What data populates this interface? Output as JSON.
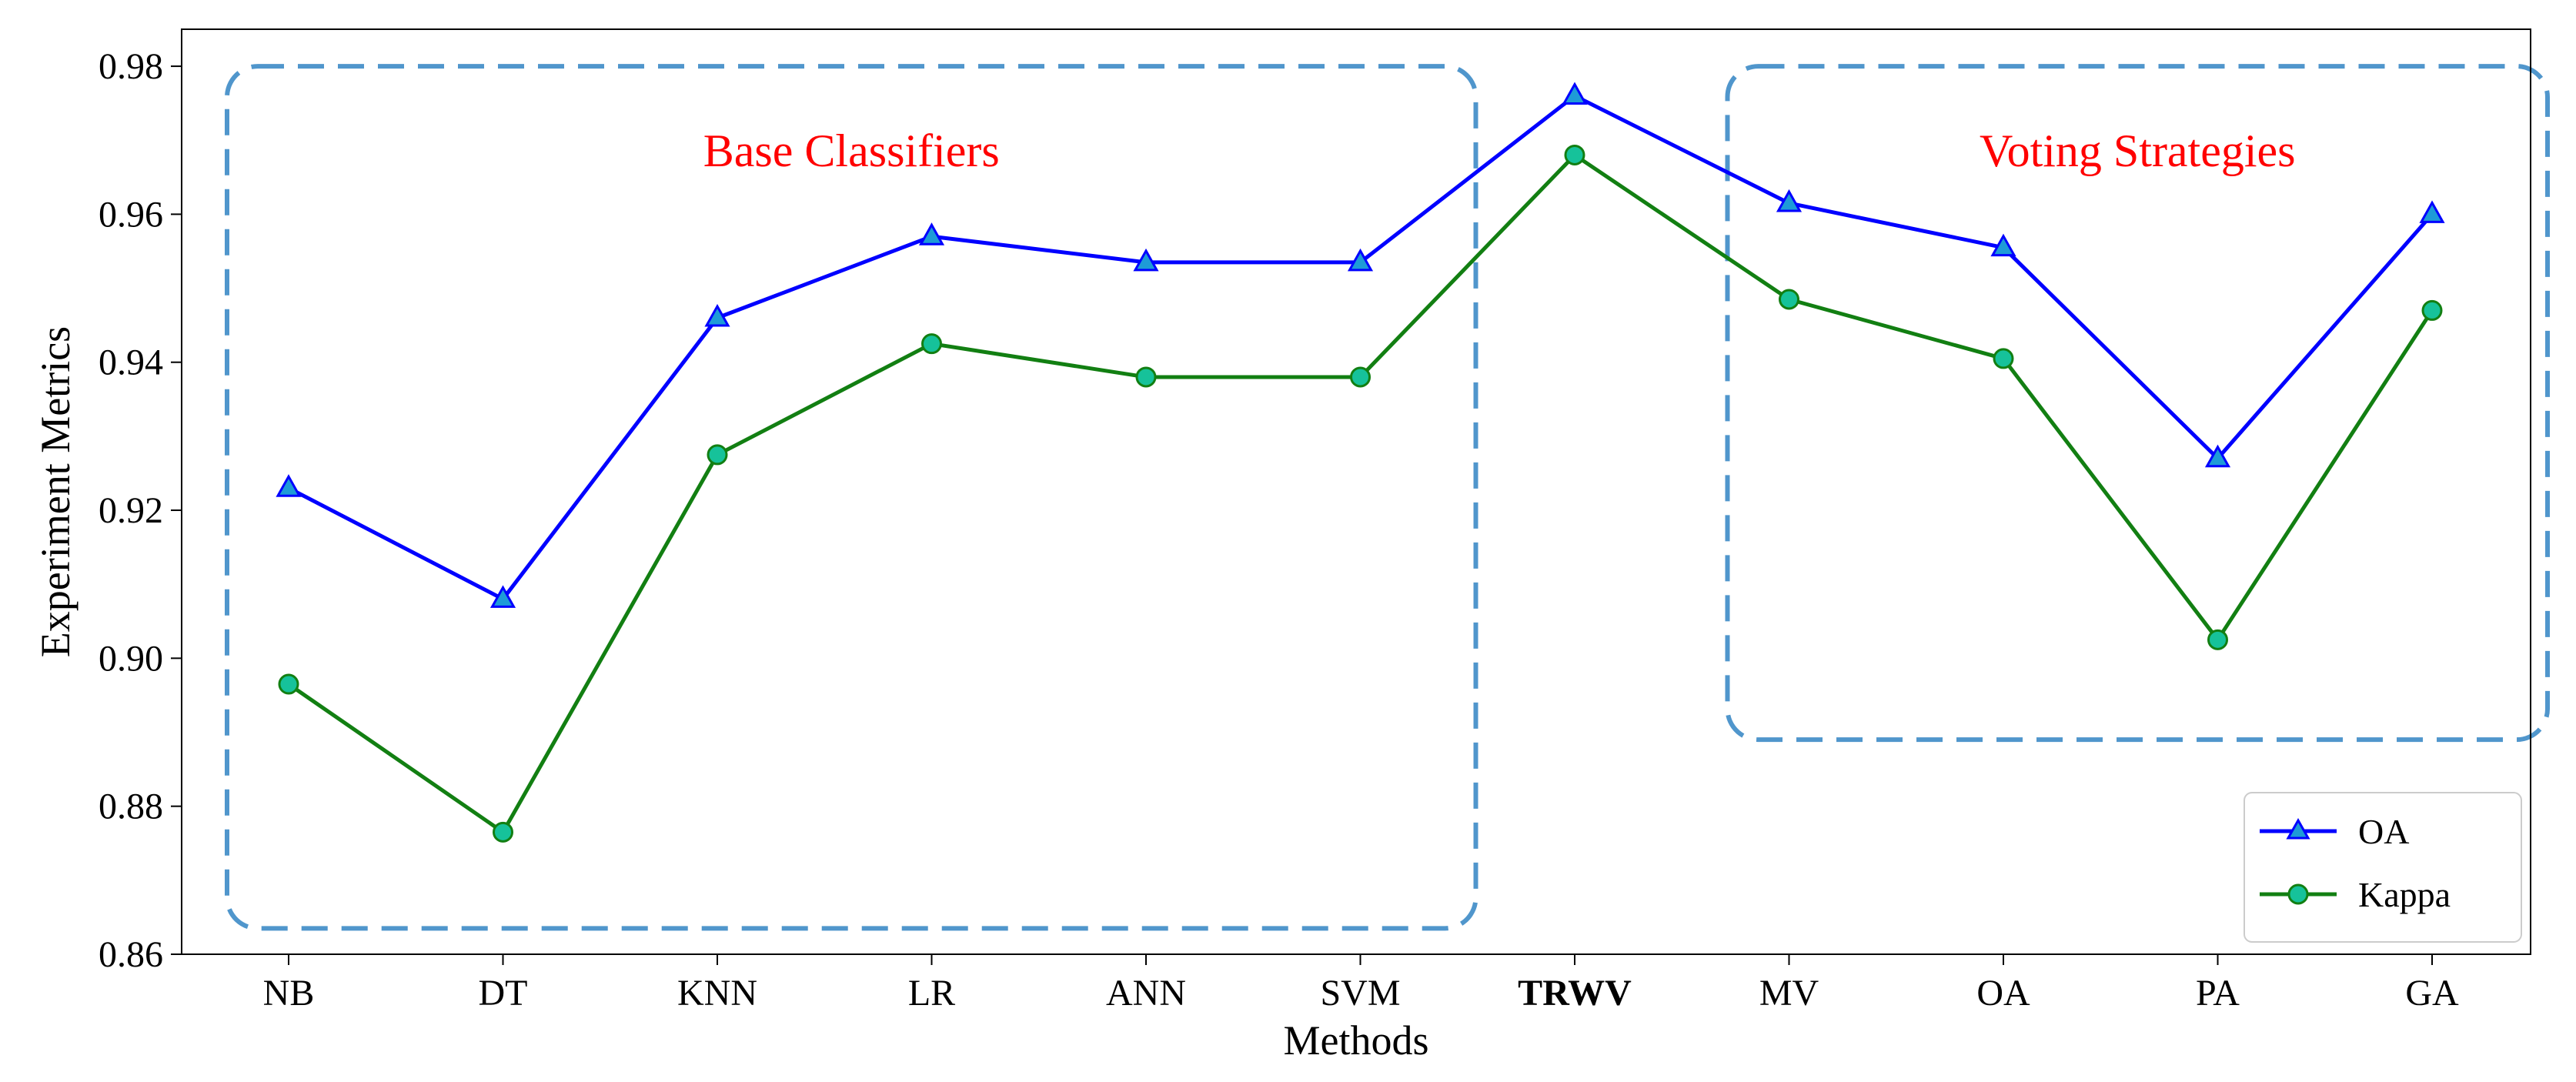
{
  "chart_data": {
    "type": "line",
    "categories": [
      "NB",
      "DT",
      "KNN",
      "LR",
      "ANN",
      "SVM",
      "TRWV",
      "MV",
      "OA",
      "PA",
      "GA"
    ],
    "highlight_category": "TRWV",
    "highlight_color": "#ff0000",
    "series": [
      {
        "name": "OA",
        "color": "#0000ff",
        "marker": "triangle",
        "marker_color": "#1e9bd7",
        "values": [
          0.923,
          0.908,
          0.946,
          0.957,
          0.9535,
          0.9535,
          0.976,
          0.9615,
          0.9555,
          0.927,
          0.96
        ]
      },
      {
        "name": "Kappa",
        "color": "#127f12",
        "marker": "circle",
        "marker_color": "#16c29a",
        "values": [
          0.8965,
          0.8765,
          0.9275,
          0.9425,
          0.938,
          0.938,
          0.968,
          0.9485,
          0.9405,
          0.9025,
          0.947
        ]
      }
    ],
    "xlabel": "Methods",
    "ylabel": "Experiment Metrics",
    "ylim": [
      0.86,
      0.985
    ],
    "yticks": [
      "0.86",
      "0.88",
      "0.90",
      "0.92",
      "0.94",
      "0.96",
      "0.98"
    ],
    "grid": false,
    "legend_position": "bottom-right",
    "regions": [
      {
        "label": "Base Classifiers",
        "color": "#5096cc",
        "x_from": "NB",
        "x_to": "SVM",
        "y_from": 0.8635,
        "y_to": 0.98
      },
      {
        "label": "Voting Strategies",
        "color": "#5096cc",
        "x_from": "MV",
        "x_to": "GA",
        "y_from": 0.889,
        "y_to": 0.98
      }
    ]
  }
}
